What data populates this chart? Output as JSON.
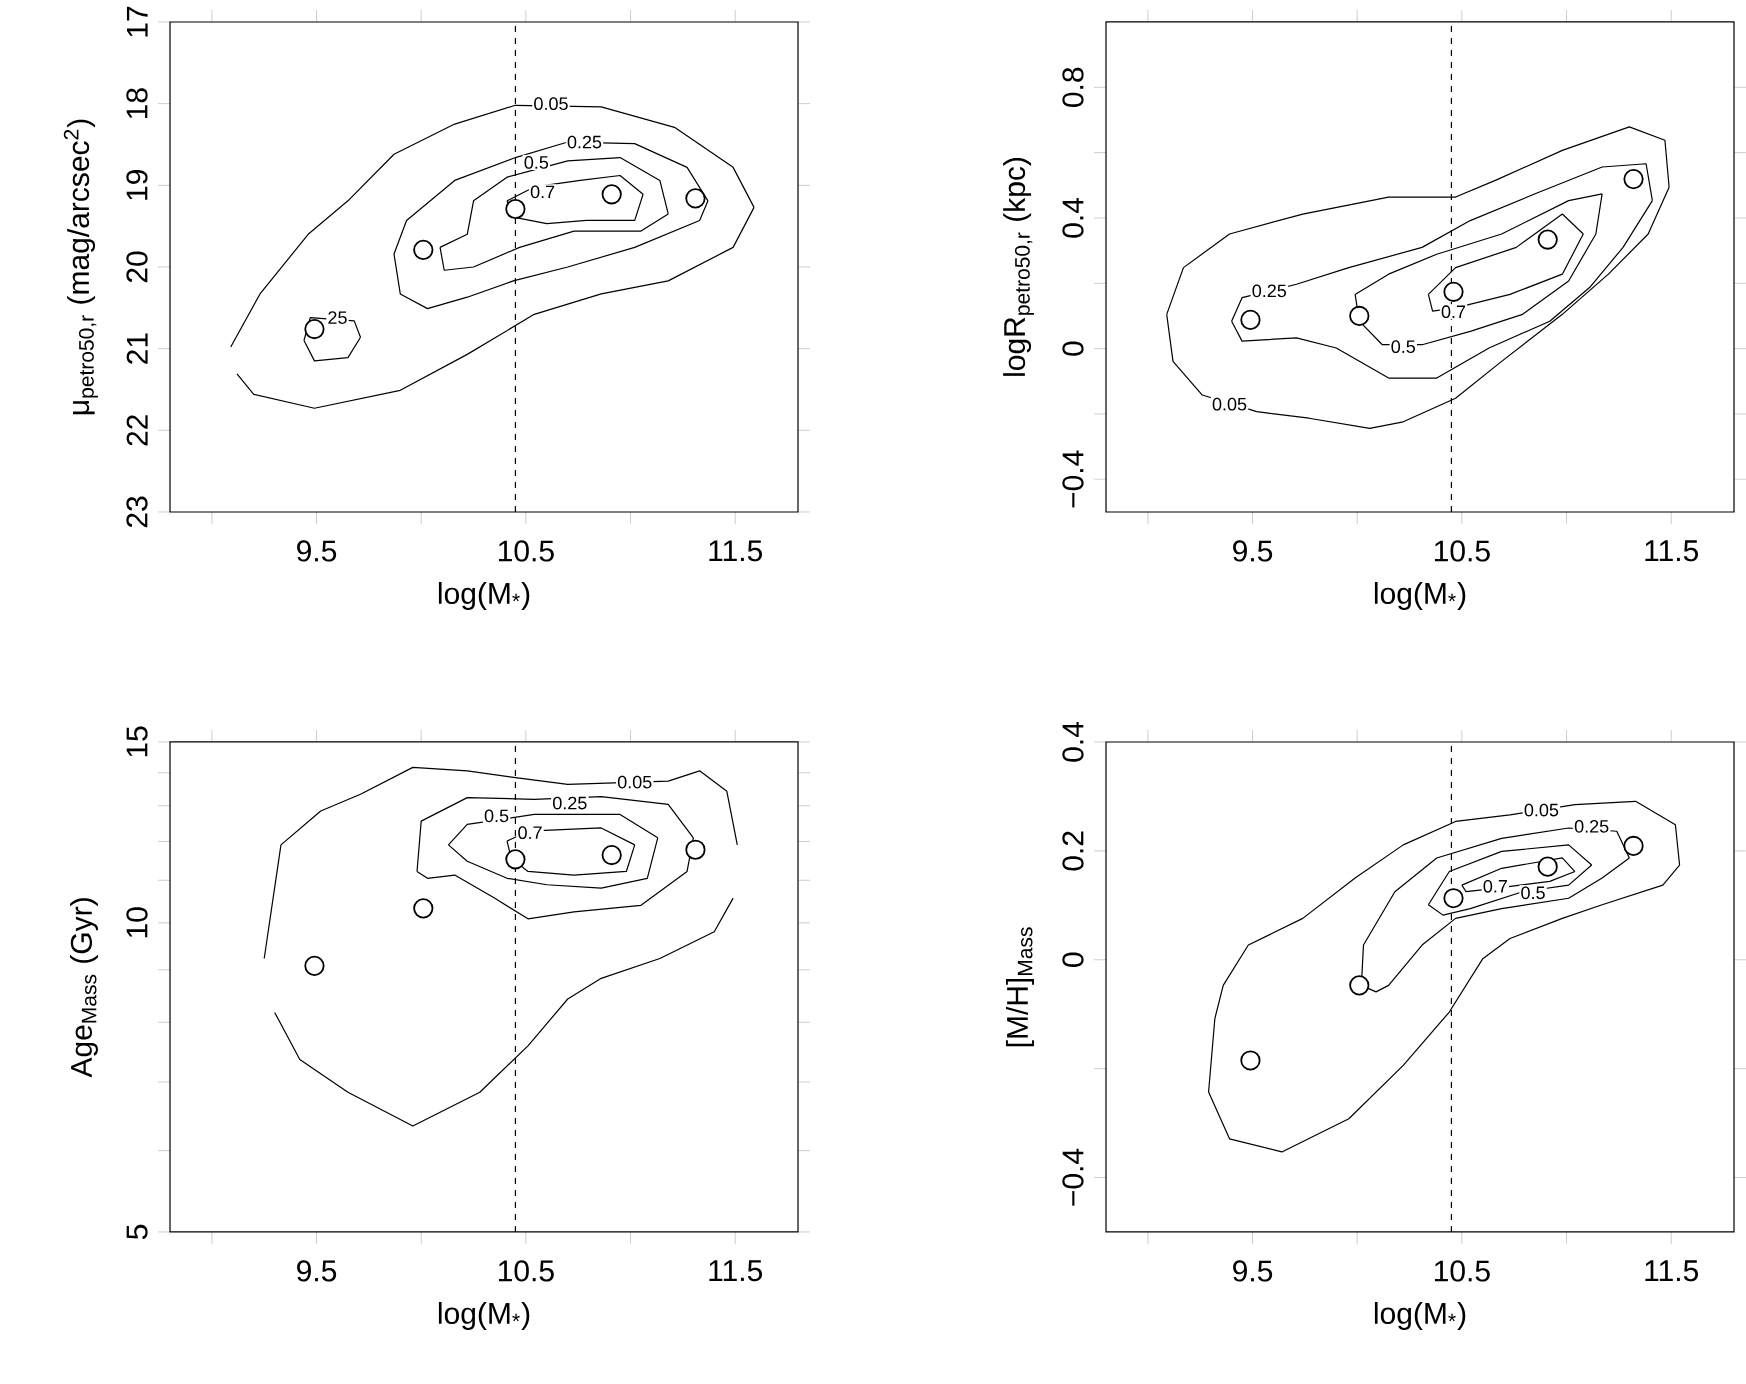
{
  "chart_data": [
    {
      "type": "scatter",
      "xlabel": "log(M$_{*}$)",
      "ylabel": "μ$_{petro50,r}$ (mag/arcsec$^{2}$)",
      "xlim": [
        8.8,
        11.8
      ],
      "ylim": [
        23,
        17
      ],
      "xticks": [
        {
          "value": 9,
          "label": null
        },
        9.5,
        {
          "value": 10,
          "label": null
        },
        10.5,
        {
          "value": 11,
          "label": null
        },
        11.5
      ],
      "yticks": [
        17,
        18,
        19,
        20,
        21,
        22,
        23
      ],
      "ref_lines": [
        {
          "axis": "x",
          "value": 10.45,
          "line_style": "dashed"
        }
      ],
      "annotations": [
        {
          "text": "0.05",
          "x": 10.62,
          "y": 18.0
        },
        {
          "text": "0.25",
          "x": 10.78,
          "y": 18.47
        },
        {
          "text": "0.5",
          "x": 10.55,
          "y": 18.72
        },
        {
          "text": "0.7",
          "x": 10.58,
          "y": 19.08
        },
        {
          "text": "25",
          "x": 9.6,
          "y": 20.62
        }
      ],
      "series": [
        {
          "type": "line",
          "color": "#000000",
          "x": [
            9.09,
            9.23,
            9.46,
            9.65,
            9.87,
            10.16,
            10.45,
            10.86,
            11.21,
            11.49,
            11.59
          ],
          "values": [
            20.98,
            20.33,
            19.6,
            19.19,
            18.62,
            18.25,
            18.02,
            18.04,
            18.29,
            18.78,
            19.27
          ]
        },
        {
          "type": "line",
          "color": "#000000",
          "x": [
            9.12,
            9.2,
            9.49,
            9.9,
            10.22,
            10.54,
            10.86,
            11.18,
            11.49,
            11.59
          ],
          "values": [
            21.31,
            21.56,
            21.73,
            21.51,
            21.07,
            20.58,
            20.33,
            20.17,
            19.76,
            19.27
          ]
        },
        {
          "type": "line",
          "color": "#000000",
          "x": [
            9.87,
            9.93,
            10.16,
            10.45,
            10.7,
            11.02,
            11.27,
            11.37
          ],
          "values": [
            19.84,
            19.43,
            18.94,
            18.66,
            18.47,
            18.49,
            18.78,
            19.19
          ]
        },
        {
          "type": "line",
          "color": "#000000",
          "x": [
            9.87,
            9.9,
            10.03,
            10.22,
            10.44,
            10.7,
            11.02,
            11.33,
            11.37
          ],
          "values": [
            19.84,
            20.33,
            20.51,
            20.37,
            20.17,
            20.0,
            19.76,
            19.43,
            19.19
          ]
        },
        {
          "type": "line",
          "color": "#000000",
          "x": [
            9.44,
            9.47,
            9.68,
            9.71
          ],
          "values": [
            20.9,
            20.62,
            20.66,
            20.86
          ]
        },
        {
          "type": "line",
          "color": "#000000",
          "x": [
            9.44,
            9.49,
            9.65,
            9.71
          ],
          "values": [
            20.9,
            21.15,
            21.11,
            20.86
          ]
        },
        {
          "type": "line",
          "color": "#000000",
          "x": [
            10.09,
            10.22,
            10.25,
            10.41,
            10.7,
            10.95,
            11.14,
            11.18
          ],
          "values": [
            19.76,
            19.6,
            19.19,
            18.9,
            18.7,
            18.66,
            18.94,
            19.35
          ]
        },
        {
          "type": "line",
          "color": "#000000",
          "x": [
            10.09,
            10.11,
            10.25,
            10.47,
            10.73,
            11.05,
            11.18
          ],
          "values": [
            19.76,
            20.04,
            20.0,
            19.76,
            19.56,
            19.56,
            19.35
          ]
        },
        {
          "type": "line",
          "color": "#000000",
          "x": [
            10.41,
            10.54,
            10.76,
            10.95,
            11.06
          ],
          "values": [
            19.19,
            19.02,
            18.94,
            18.88,
            19.11
          ]
        },
        {
          "type": "line",
          "color": "#000000",
          "x": [
            10.41,
            10.44,
            10.6,
            10.79,
            11.02,
            11.06
          ],
          "values": [
            19.19,
            19.39,
            19.47,
            19.43,
            19.43,
            19.11
          ]
        },
        {
          "color": "#ffffff",
          "marker": "circle",
          "x": [
            9.49,
            10.01,
            10.45,
            10.91,
            11.31
          ],
          "values": [
            20.76,
            19.79,
            19.29,
            19.11,
            19.16
          ]
        }
      ]
    },
    {
      "type": "scatter",
      "xlabel": "log(M$_{*}$)",
      "ylabel": "logR$_{petro50,r}$ (kpc)",
      "xlim": [
        8.8,
        11.8
      ],
      "ylim": [
        -0.5,
        1.0
      ],
      "xticks": [
        {
          "value": 9,
          "label": null
        },
        9.5,
        {
          "value": 10,
          "label": null
        },
        10.5,
        {
          "value": 11,
          "label": null
        },
        11.5
      ],
      "yticks": [
        {
          "value": -0.4,
          "label": "−0.4"
        },
        {
          "value": -0.2,
          "label": null
        },
        0,
        {
          "value": 0.2,
          "label": null
        },
        0.4,
        {
          "value": 0.6,
          "label": null
        },
        0.8
      ],
      "ref_lines": [
        {
          "axis": "x",
          "value": 10.45,
          "line_style": "dashed"
        }
      ],
      "annotations": [
        {
          "text": "0.05",
          "x": 9.39,
          "y": -0.17
        },
        {
          "text": "0.25",
          "x": 9.58,
          "y": 0.177
        },
        {
          "text": "0.5",
          "x": 10.22,
          "y": 0.006
        },
        {
          "text": "0.7",
          "x": 10.46,
          "y": 0.113
        }
      ],
      "series": [
        {
          "type": "line",
          "color": "#000000",
          "x": [
            9.09,
            9.17,
            9.39,
            9.74,
            10.15,
            10.47,
            10.66,
            10.98,
            11.3,
            11.47,
            11.49
          ],
          "values": [
            0.105,
            0.248,
            0.351,
            0.412,
            0.464,
            0.464,
            0.515,
            0.607,
            0.679,
            0.638,
            0.494
          ]
        },
        {
          "type": "line",
          "color": "#000000",
          "x": [
            9.09,
            9.12,
            9.26,
            9.52,
            9.77,
            10.06,
            10.22,
            10.47,
            10.69,
            10.98,
            11.2,
            11.39,
            11.49
          ],
          "values": [
            0.105,
            -0.039,
            -0.142,
            -0.193,
            -0.213,
            -0.244,
            -0.224,
            -0.152,
            -0.039,
            0.105,
            0.228,
            0.351,
            0.494
          ]
        },
        {
          "type": "line",
          "color": "#000000",
          "x": [
            9.4,
            9.45,
            9.71,
            9.96,
            10.31,
            10.54,
            10.85,
            11.17,
            11.38,
            11.41
          ],
          "values": [
            0.084,
            0.156,
            0.197,
            0.248,
            0.31,
            0.392,
            0.474,
            0.556,
            0.566,
            0.453
          ]
        },
        {
          "type": "line",
          "color": "#000000",
          "x": [
            9.4,
            9.45,
            9.71,
            9.9,
            10.15,
            10.38,
            10.63,
            10.92,
            11.11,
            11.27,
            11.41
          ],
          "values": [
            0.084,
            0.023,
            0.033,
            0.002,
            -0.09,
            -0.09,
            0.002,
            0.084,
            0.187,
            0.31,
            0.453
          ]
        },
        {
          "type": "line",
          "color": "#000000",
          "x": [
            9.99,
            10.15,
            10.38,
            10.69,
            11.01,
            11.17
          ],
          "values": [
            0.166,
            0.228,
            0.289,
            0.351,
            0.453,
            0.474
          ]
        },
        {
          "type": "line",
          "color": "#000000",
          "x": [
            9.99,
            10.01,
            10.12,
            10.31,
            10.54,
            10.79,
            11.01,
            11.14,
            11.17
          ],
          "values": [
            0.166,
            0.084,
            0.012,
            0.012,
            0.053,
            0.105,
            0.207,
            0.351,
            0.474
          ]
        },
        {
          "type": "line",
          "color": "#000000",
          "x": [
            10.34,
            10.47,
            10.76,
            10.98,
            11.08
          ],
          "values": [
            0.166,
            0.248,
            0.31,
            0.412,
            0.351
          ]
        },
        {
          "type": "line",
          "color": "#000000",
          "x": [
            10.34,
            10.36,
            10.47,
            10.73,
            10.98,
            11.08
          ],
          "values": [
            0.166,
            0.115,
            0.125,
            0.166,
            0.228,
            0.351
          ]
        },
        {
          "color": "#ffffff",
          "marker": "circle",
          "x": [
            9.49,
            10.01,
            10.46,
            10.91,
            11.32
          ],
          "values": [
            0.088,
            0.1,
            0.174,
            0.334,
            0.519
          ]
        }
      ]
    },
    {
      "type": "scatter",
      "xlabel": "log(M$_{*}$)",
      "ylabel": "Age$_{Mass}$ (Gyr)",
      "log": "y",
      "xlim": [
        8.8,
        11.8
      ],
      "ylim": [
        5,
        15
      ],
      "xticks": [
        {
          "value": 9,
          "label": null
        },
        9.5,
        {
          "value": 10,
          "label": null
        },
        10.5,
        {
          "value": 11,
          "label": null
        },
        11.5
      ],
      "yticks": [
        5,
        {
          "value": 6,
          "label": null
        },
        {
          "value": 7,
          "label": null
        },
        {
          "value": 8,
          "label": null
        },
        {
          "value": 9,
          "label": null
        },
        10,
        {
          "value": 11,
          "label": null
        },
        {
          "value": 12,
          "label": null
        },
        {
          "value": 13,
          "label": null
        },
        {
          "value": 14,
          "label": null
        },
        15
      ],
      "ref_lines": [
        {
          "axis": "x",
          "value": 10.45,
          "line_style": "dashed"
        }
      ],
      "annotations": [
        {
          "text": "0.05",
          "x": 11.02,
          "y": 13.71
        },
        {
          "text": "0.25",
          "x": 10.71,
          "y": 13.08
        },
        {
          "text": "0.5",
          "x": 10.36,
          "y": 12.71
        },
        {
          "text": "0.7",
          "x": 10.52,
          "y": 12.24
        }
      ],
      "series": [
        {
          "type": "line",
          "color": "#000000",
          "x": [
            9.25,
            9.33,
            9.52,
            9.71,
            9.96,
            10.22,
            10.45,
            10.7,
            11.18,
            11.33,
            11.46,
            11.51
          ],
          "values": [
            9.23,
            11.91,
            12.85,
            13.34,
            14.17,
            14.06,
            13.85,
            13.64,
            13.74,
            14.06,
            13.43,
            11.91
          ]
        },
        {
          "type": "line",
          "color": "#000000",
          "x": [
            9.3,
            9.42,
            9.65,
            9.96,
            10.28,
            10.51,
            10.7,
            10.86,
            11.14,
            11.4,
            11.49
          ],
          "values": [
            8.18,
            7.36,
            6.84,
            6.34,
            6.84,
            7.59,
            8.43,
            8.83,
            9.23,
            9.8,
            10.57
          ]
        },
        {
          "type": "line",
          "color": "#000000",
          "x": [
            9.98,
            10.0,
            10.22,
            10.54,
            10.86,
            11.18,
            11.3
          ],
          "values": [
            11.22,
            12.56,
            13.24,
            13.19,
            13.27,
            13.04,
            12.1
          ]
        },
        {
          "type": "line",
          "color": "#000000",
          "x": [
            9.98,
            10.03,
            10.16,
            10.35,
            10.51,
            10.73,
            11.05,
            11.27,
            11.3
          ],
          "values": [
            11.22,
            11.05,
            11.13,
            10.57,
            10.09,
            10.25,
            10.4,
            11.22,
            12.1
          ]
        },
        {
          "type": "line",
          "color": "#000000",
          "x": [
            10.13,
            10.22,
            10.54,
            10.95,
            11.13
          ],
          "values": [
            11.91,
            12.47,
            12.75,
            12.75,
            12.1
          ]
        },
        {
          "type": "line",
          "color": "#000000",
          "x": [
            10.13,
            10.22,
            10.41,
            10.6,
            10.86,
            11.08,
            11.13
          ],
          "values": [
            11.91,
            11.48,
            11.05,
            10.89,
            10.81,
            11.05,
            12.1
          ]
        },
        {
          "type": "line",
          "color": "#000000",
          "x": [
            10.41,
            10.51,
            10.86,
            11.02
          ],
          "values": [
            12.01,
            12.28,
            12.37,
            11.91
          ]
        },
        {
          "type": "line",
          "color": "#000000",
          "x": [
            10.41,
            10.43,
            10.51,
            10.73,
            10.98,
            11.02
          ],
          "values": [
            12.01,
            11.56,
            11.22,
            11.13,
            11.22,
            11.91
          ]
        },
        {
          "color": "#ffffff",
          "marker": "circle",
          "x": [
            9.49,
            10.01,
            10.45,
            10.91,
            11.31
          ],
          "values": [
            9.08,
            10.33,
            11.53,
            11.64,
            11.78
          ]
        }
      ]
    },
    {
      "type": "scatter",
      "xlabel": "log(M$_{*}$)",
      "ylabel": "[M/H]$_{Mass}$",
      "xlim": [
        8.8,
        11.8
      ],
      "ylim": [
        -0.5,
        0.4
      ],
      "xticks": [
        {
          "value": 9,
          "label": null
        },
        9.5,
        {
          "value": 10,
          "label": null
        },
        10.5,
        {
          "value": 11,
          "label": null
        },
        11.5
      ],
      "yticks": [
        {
          "value": -0.4,
          "label": "−0.4"
        },
        {
          "value": -0.2,
          "label": null
        },
        0,
        0.2,
        0.4
      ],
      "ref_lines": [
        {
          "axis": "x",
          "value": 10.45,
          "line_style": "dashed"
        }
      ],
      "annotations": [
        {
          "text": "0.05",
          "x": 10.88,
          "y": 0.275
        },
        {
          "text": "0.25",
          "x": 11.12,
          "y": 0.245
        },
        {
          "text": "0.5",
          "x": 10.84,
          "y": 0.123
        },
        {
          "text": "0.7",
          "x": 10.66,
          "y": 0.135
        }
      ],
      "series": [
        {
          "type": "line",
          "color": "#000000",
          "x": [
            9.29,
            9.32,
            9.36,
            9.48,
            9.74,
            9.99,
            10.22,
            10.47,
            10.73,
            11.04,
            11.33,
            11.52,
            11.54
          ],
          "values": [
            -0.243,
            -0.108,
            -0.047,
            0.027,
            0.076,
            0.15,
            0.211,
            0.254,
            0.266,
            0.285,
            0.291,
            0.248,
            0.174
          ]
        },
        {
          "type": "line",
          "color": "#000000",
          "x": [
            9.29,
            9.39,
            9.64,
            9.96,
            10.22,
            10.44,
            10.6,
            10.73,
            10.98,
            11.17,
            11.46,
            11.54
          ],
          "values": [
            -0.243,
            -0.329,
            -0.353,
            -0.292,
            -0.194,
            -0.096,
            0.002,
            0.039,
            0.076,
            0.101,
            0.137,
            0.174
          ]
        },
        {
          "type": "line",
          "color": "#000000",
          "x": [
            10.02,
            10.03,
            10.18,
            10.38,
            10.69,
            11.01,
            11.24,
            11.3
          ],
          "values": [
            -0.047,
            0.027,
            0.125,
            0.187,
            0.223,
            0.242,
            0.236,
            0.187
          ]
        },
        {
          "type": "line",
          "color": "#000000",
          "x": [
            10.02,
            10.09,
            10.15,
            10.31,
            10.47,
            10.69,
            11.01,
            11.17,
            11.3
          ],
          "values": [
            -0.047,
            -0.059,
            -0.047,
            0.027,
            0.076,
            0.094,
            0.113,
            0.15,
            0.187
          ]
        },
        {
          "type": "line",
          "color": "#000000",
          "x": [
            10.34,
            10.44,
            10.69,
            11.01,
            11.12
          ],
          "values": [
            0.101,
            0.162,
            0.199,
            0.211,
            0.174
          ]
        },
        {
          "type": "line",
          "color": "#000000",
          "x": [
            10.34,
            10.41,
            10.54,
            10.79,
            11.01,
            11.12
          ],
          "values": [
            0.101,
            0.082,
            0.094,
            0.125,
            0.137,
            0.174
          ]
        },
        {
          "type": "line",
          "color": "#000000",
          "x": [
            10.5,
            10.69,
            10.98,
            11.04
          ],
          "values": [
            0.137,
            0.168,
            0.187,
            0.162
          ]
        },
        {
          "type": "line",
          "color": "#000000",
          "x": [
            10.5,
            10.52,
            10.66,
            10.92,
            11.04
          ],
          "values": [
            0.137,
            0.125,
            0.131,
            0.144,
            0.162
          ]
        },
        {
          "color": "#ffffff",
          "marker": "circle",
          "x": [
            9.49,
            10.01,
            10.46,
            10.91,
            11.32
          ],
          "values": [
            -0.185,
            -0.047,
            0.113,
            0.171,
            0.209
          ]
        }
      ]
    }
  ]
}
